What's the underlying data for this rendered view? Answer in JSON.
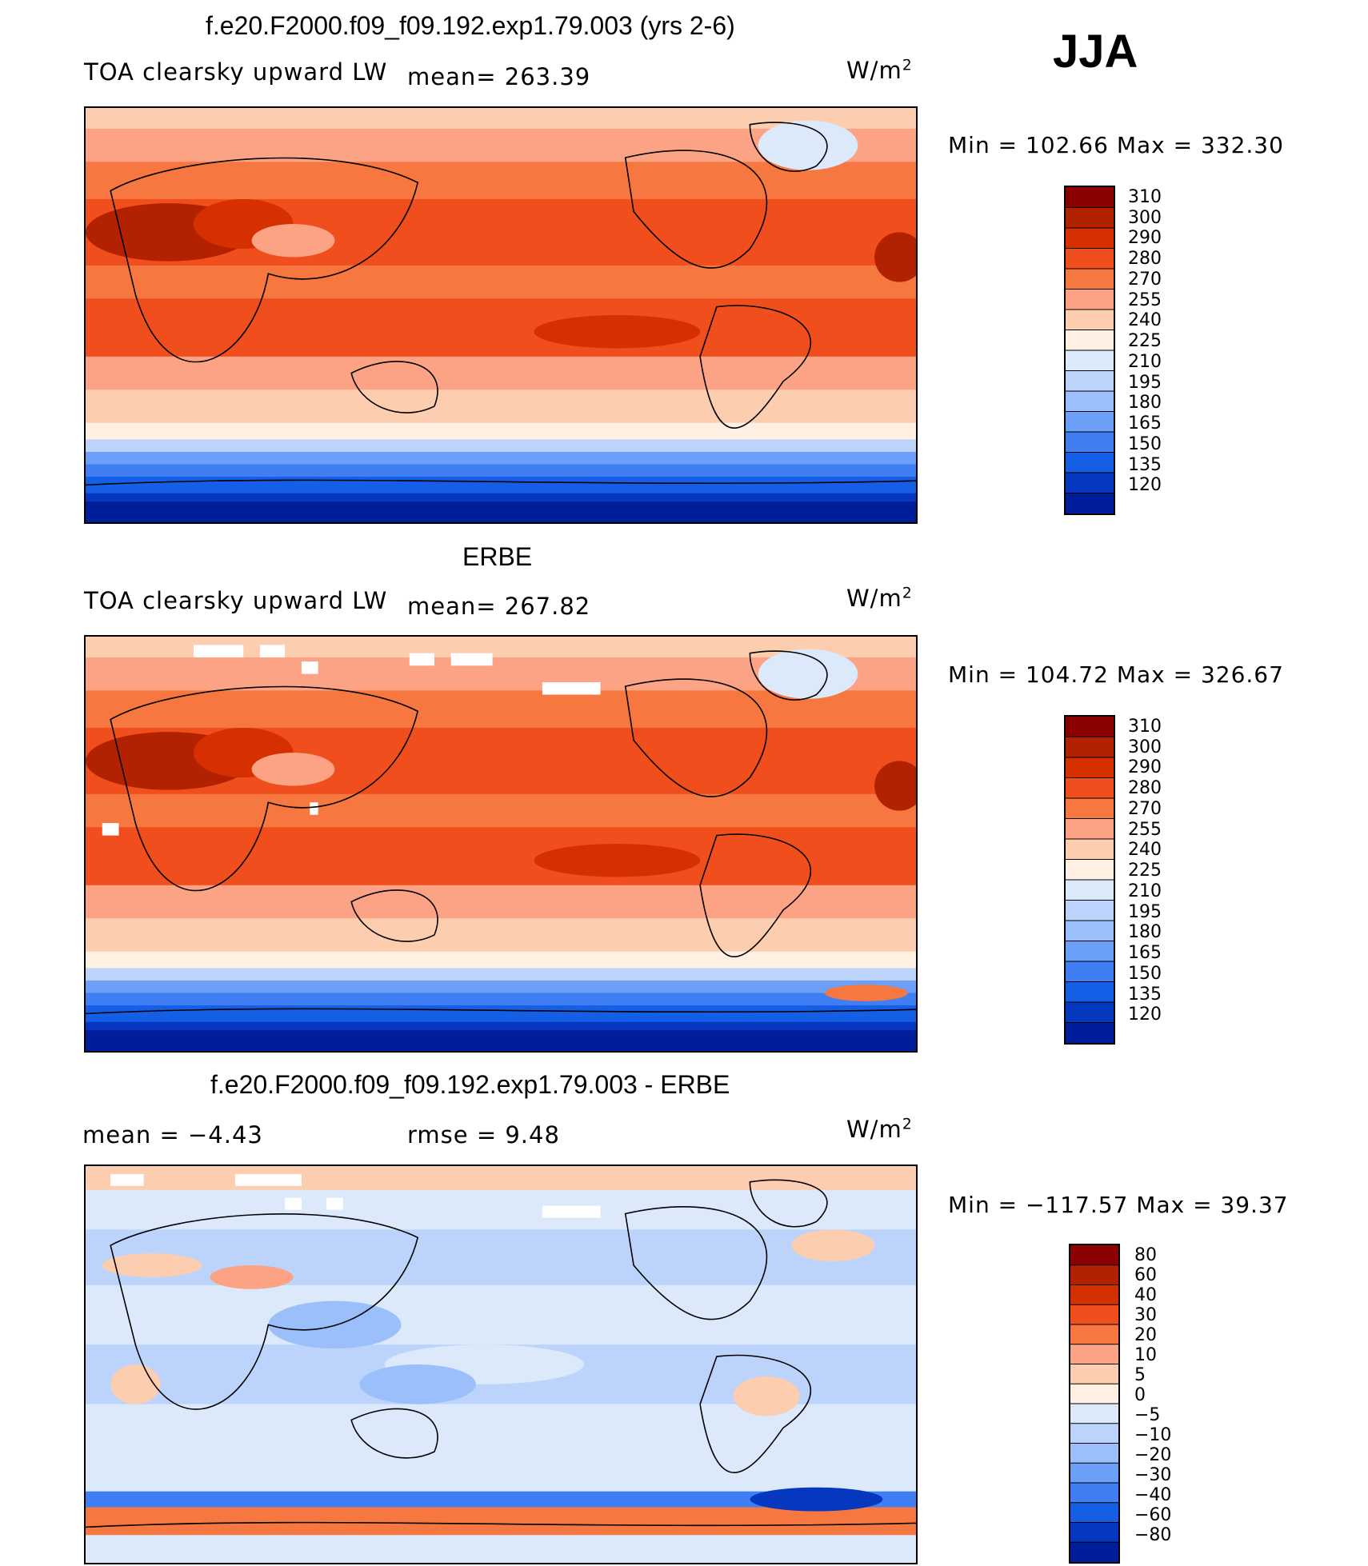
{
  "season": "JJA",
  "panels": [
    {
      "title": "f.e20.F2000.f09_f09.192.exp1.79.003 (yrs 2-6)",
      "left_label": "TOA clearsky upward LW",
      "center_label": "mean= 263.39",
      "units_base": "W/m",
      "units_exp": "2",
      "min_max": "Min = 102.66 Max = 332.30",
      "field": "model",
      "colorbar": {
        "colors": [
          "#8b0000",
          "#b22200",
          "#d73000",
          "#f04e1c",
          "#f6773f",
          "#fba384",
          "#fdcdb0",
          "#fff0e3",
          "#dbe9fb",
          "#bcd4fb",
          "#9abffa",
          "#6c9ff7",
          "#3f7ff3",
          "#155fe7",
          "#0537bf",
          "#001e99"
        ],
        "labels": [
          "310",
          "300",
          "290",
          "280",
          "270",
          "255",
          "240",
          "225",
          "210",
          "195",
          "180",
          "165",
          "150",
          "135",
          "120"
        ]
      }
    },
    {
      "title": "ERBE",
      "left_label": "TOA clearsky upward LW",
      "center_label": "mean= 267.82",
      "units_base": "W/m",
      "units_exp": "2",
      "min_max": "Min = 104.72 Max = 326.67",
      "field": "obs",
      "colorbar": {
        "colors": [
          "#8b0000",
          "#b22200",
          "#d73000",
          "#f04e1c",
          "#f6773f",
          "#fba384",
          "#fdcdb0",
          "#fff0e3",
          "#dbe9fb",
          "#bcd4fb",
          "#9abffa",
          "#6c9ff7",
          "#3f7ff3",
          "#155fe7",
          "#0537bf",
          "#001e99"
        ],
        "labels": [
          "310",
          "300",
          "290",
          "280",
          "270",
          "255",
          "240",
          "225",
          "210",
          "195",
          "180",
          "165",
          "150",
          "135",
          "120"
        ]
      }
    },
    {
      "title": "f.e20.F2000.f09_f09.192.exp1.79.003 - ERBE",
      "left_label": "mean =   −4.43",
      "center_label": "rmse =    9.48",
      "units_base": "W/m",
      "units_exp": "2",
      "min_max": "Min = −117.57 Max =  39.37",
      "field": "diff",
      "colorbar": {
        "colors": [
          "#8b0000",
          "#b22200",
          "#d73000",
          "#f04e1c",
          "#f6773f",
          "#fba384",
          "#fdcdb0",
          "#fff0e3",
          "#dbe9fb",
          "#bcd4fb",
          "#9abffa",
          "#6c9ff7",
          "#3f7ff3",
          "#155fe7",
          "#0537bf",
          "#001e99"
        ],
        "labels": [
          "80",
          "60",
          "40",
          "30",
          "20",
          "10",
          "5",
          "0",
          "−5",
          "−10",
          "−20",
          "−30",
          "−40",
          "−60",
          "−80"
        ]
      }
    }
  ]
}
